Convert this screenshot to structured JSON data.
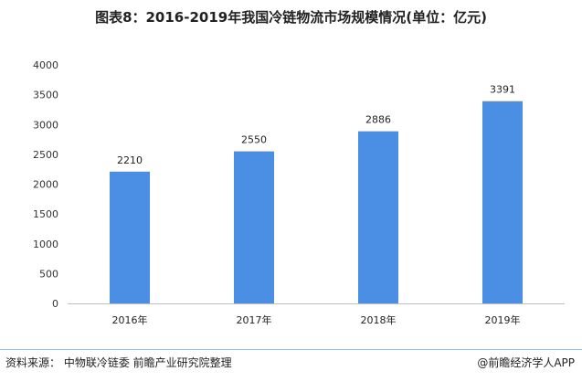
{
  "title": "图表8：2016-2019年我国冷链物流市场规模情况(单位：亿元)",
  "chart_data": {
    "type": "bar",
    "title": "图表8：2016-2019年我国冷链物流市场规模情况(单位：亿元)",
    "categories": [
      "2016年",
      "2017年",
      "2018年",
      "2019年"
    ],
    "values": [
      2210,
      2550,
      2886,
      3391
    ],
    "yticks": [
      0,
      500,
      1000,
      1500,
      2000,
      2500,
      3000,
      3500,
      4000
    ],
    "ylim": [
      0,
      4000
    ],
    "xlabel": "",
    "ylabel": "",
    "bar_color": "#4a8fe3",
    "grid": false,
    "legend": "none"
  },
  "footer": {
    "source": "资料来源：  中物联冷链委  前瞻产业研究院整理",
    "brand": "@前瞻经济学人APP"
  }
}
